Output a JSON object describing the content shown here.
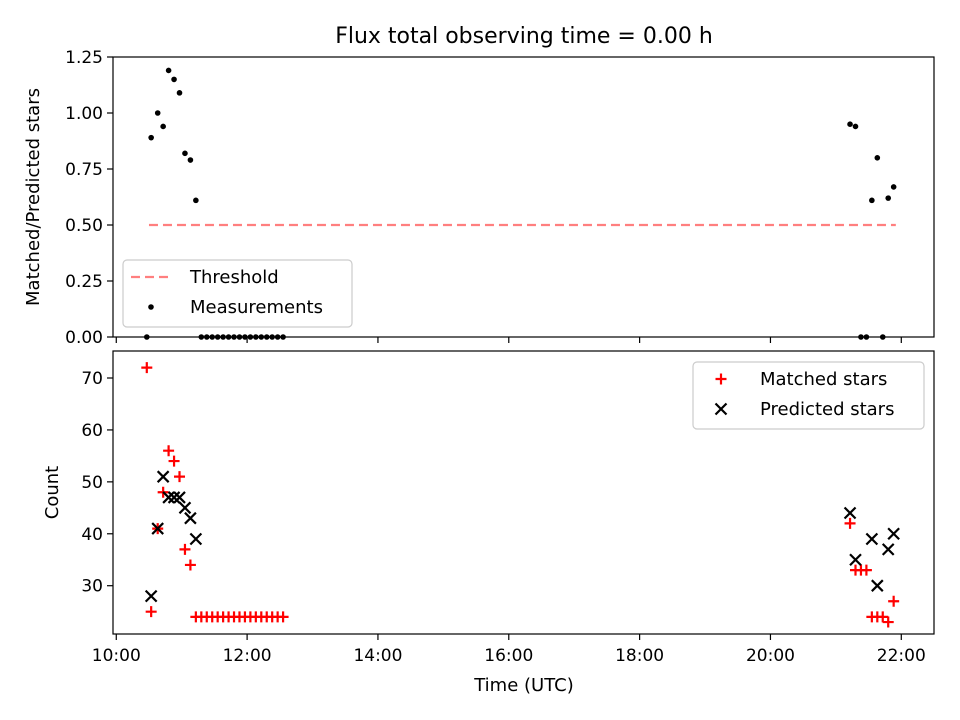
{
  "chart_data": [
    {
      "type": "scatter",
      "title": "Flux total observing time = 0.00 h",
      "ylabel": "Matched/Predicted stars",
      "xlabel": "",
      "ylim": [
        0,
        1.25
      ],
      "xlim": [
        "09:57",
        "22:30"
      ],
      "yticks": [
        "0.00",
        "0.25",
        "0.50",
        "0.75",
        "1.00",
        "1.25"
      ],
      "xticks": [
        "10:00",
        "12:00",
        "14:00",
        "16:00",
        "18:00",
        "20:00",
        "22:00"
      ],
      "show_xtick_labels": false,
      "legend_position": "lower left",
      "series": [
        {
          "name": "Threshold",
          "style": "dashed-line",
          "color": "#ff7f7f",
          "points": [
            [
              "10:30",
              0.5
            ],
            [
              "21:55",
              0.5
            ]
          ]
        },
        {
          "name": "Measurements",
          "style": "dot",
          "color": "#000000",
          "points": [
            [
              "10:28",
              0.0
            ],
            [
              "10:32",
              0.89
            ],
            [
              "10:38",
              1.0
            ],
            [
              "10:43",
              0.94
            ],
            [
              "10:48",
              1.19
            ],
            [
              "10:53",
              1.15
            ],
            [
              "10:58",
              1.09
            ],
            [
              "11:03",
              0.82
            ],
            [
              "11:08",
              0.79
            ],
            [
              "11:13",
              0.61
            ],
            [
              "11:18",
              0.0
            ],
            [
              "11:23",
              0.0
            ],
            [
              "11:28",
              0.0
            ],
            [
              "11:33",
              0.0
            ],
            [
              "11:38",
              0.0
            ],
            [
              "11:43",
              0.0
            ],
            [
              "11:48",
              0.0
            ],
            [
              "11:53",
              0.0
            ],
            [
              "11:58",
              0.0
            ],
            [
              "12:03",
              0.0
            ],
            [
              "12:08",
              0.0
            ],
            [
              "12:13",
              0.0
            ],
            [
              "12:18",
              0.0
            ],
            [
              "12:23",
              0.0
            ],
            [
              "12:28",
              0.0
            ],
            [
              "12:33",
              0.0
            ],
            [
              "21:13",
              0.95
            ],
            [
              "21:18",
              0.94
            ],
            [
              "21:23",
              0.0
            ],
            [
              "21:28",
              0.0
            ],
            [
              "21:33",
              0.61
            ],
            [
              "21:38",
              0.8
            ],
            [
              "21:43",
              0.0
            ],
            [
              "21:48",
              0.62
            ],
            [
              "21:53",
              0.67
            ]
          ]
        }
      ]
    },
    {
      "type": "scatter",
      "title": "",
      "ylabel": "Count",
      "xlabel": "Time (UTC)",
      "ylim": [
        20.7,
        75.2
      ],
      "xlim": [
        "09:57",
        "22:30"
      ],
      "yticks": [
        "30",
        "40",
        "50",
        "60",
        "70"
      ],
      "xticks": [
        "10:00",
        "12:00",
        "14:00",
        "16:00",
        "18:00",
        "20:00",
        "22:00"
      ],
      "show_xtick_labels": true,
      "legend_position": "upper right",
      "series": [
        {
          "name": "Matched stars",
          "style": "plus",
          "color": "#ff0000",
          "points": [
            [
              "10:28",
              72
            ],
            [
              "10:32",
              25
            ],
            [
              "10:38",
              41
            ],
            [
              "10:43",
              48
            ],
            [
              "10:48",
              56
            ],
            [
              "10:53",
              54
            ],
            [
              "10:58",
              51
            ],
            [
              "11:03",
              37
            ],
            [
              "11:08",
              34
            ],
            [
              "11:13",
              24
            ],
            [
              "11:18",
              24
            ],
            [
              "11:23",
              24
            ],
            [
              "11:28",
              24
            ],
            [
              "11:33",
              24
            ],
            [
              "11:38",
              24
            ],
            [
              "11:43",
              24
            ],
            [
              "11:48",
              24
            ],
            [
              "11:53",
              24
            ],
            [
              "11:58",
              24
            ],
            [
              "12:03",
              24
            ],
            [
              "12:08",
              24
            ],
            [
              "12:13",
              24
            ],
            [
              "12:18",
              24
            ],
            [
              "12:23",
              24
            ],
            [
              "12:28",
              24
            ],
            [
              "12:33",
              24
            ],
            [
              "21:13",
              42
            ],
            [
              "21:18",
              33
            ],
            [
              "21:23",
              33
            ],
            [
              "21:28",
              33
            ],
            [
              "21:33",
              24
            ],
            [
              "21:38",
              24
            ],
            [
              "21:43",
              24
            ],
            [
              "21:48",
              23
            ],
            [
              "21:53",
              27
            ]
          ]
        },
        {
          "name": "Predicted stars",
          "style": "x",
          "color": "#000000",
          "points": [
            [
              "10:32",
              28
            ],
            [
              "10:38",
              41
            ],
            [
              "10:43",
              51
            ],
            [
              "10:48",
              47
            ],
            [
              "10:53",
              47
            ],
            [
              "10:58",
              47
            ],
            [
              "11:03",
              45
            ],
            [
              "11:08",
              43
            ],
            [
              "11:13",
              39
            ],
            [
              "21:13",
              44
            ],
            [
              "21:18",
              35
            ],
            [
              "21:33",
              39
            ],
            [
              "21:38",
              30
            ],
            [
              "21:48",
              37
            ],
            [
              "21:53",
              40
            ]
          ]
        }
      ]
    }
  ]
}
